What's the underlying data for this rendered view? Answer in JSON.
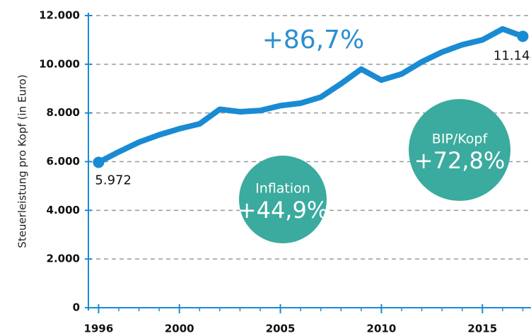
{
  "chart_data": {
    "type": "line",
    "y_label": "Steuerleistung pro Kopf (in Euro)",
    "x": [
      1996,
      1997,
      1998,
      1999,
      2000,
      2001,
      2002,
      2003,
      2004,
      2005,
      2006,
      2007,
      2008,
      2009,
      2010,
      2011,
      2012,
      2013,
      2014,
      2015,
      2016,
      2017
    ],
    "series": [
      {
        "color": "#1a8bd2",
        "values": [
          5972,
          6400,
          6800,
          7100,
          7350,
          7550,
          8150,
          8050,
          8100,
          8300,
          8400,
          8650,
          9200,
          9800,
          9350,
          9600,
          10100,
          10500,
          10800,
          11000,
          11450,
          11148
        ],
        "value_labels": [
          "5.972",
          null,
          null,
          null,
          null,
          null,
          null,
          null,
          null,
          null,
          null,
          null,
          null,
          null,
          null,
          null,
          null,
          null,
          null,
          null,
          null,
          "11.148"
        ]
      }
    ],
    "xlim": [
      1995.6,
      2017.3
    ],
    "xticks": [
      1996,
      2000,
      2005,
      2010,
      2015
    ],
    "ylim": [
      0,
      12000
    ],
    "yticks": [
      0,
      {
        "value": 2000,
        "label": "2.000"
      },
      {
        "value": 4000,
        "label": "4.000"
      },
      {
        "value": 6000,
        "label": "6.000"
      },
      {
        "value": 8000,
        "label": "8.000"
      },
      {
        "value": 10000,
        "label": "10.000"
      },
      {
        "value": 12000,
        "label": "12.000"
      }
    ],
    "grid": true,
    "annotations": [
      {
        "text": "+86,7%"
      },
      {
        "label": "Inflation",
        "text": "+44,9%",
        "color": "#3aab9e"
      },
      {
        "label": "BIP/Kopf",
        "text": "+72,8%",
        "color": "#3aab9e"
      }
    ]
  }
}
